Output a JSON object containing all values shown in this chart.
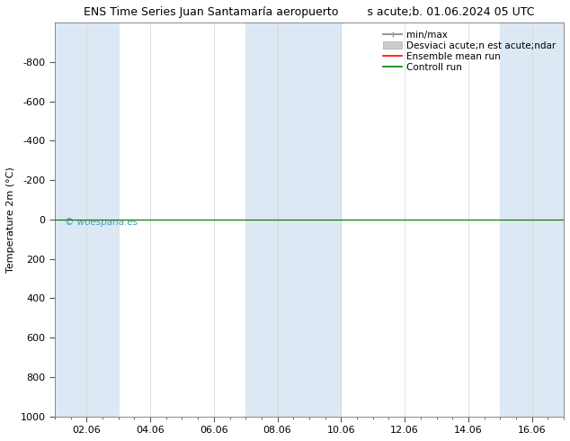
{
  "title_left": "ENS Time Series Juan Santamaría aeropuerto",
  "title_right": "s acute;b. 01.06.2024 05 UTC",
  "ylabel": "Temperature 2m (°C)",
  "ylim_top": -1000,
  "ylim_bottom": 1000,
  "yticks": [
    -800,
    -600,
    -400,
    -200,
    0,
    200,
    400,
    600,
    800,
    1000
  ],
  "xtick_labels": [
    "02.06",
    "04.06",
    "06.06",
    "08.06",
    "10.06",
    "12.06",
    "14.06",
    "16.06"
  ],
  "xtick_positions": [
    2,
    4,
    6,
    8,
    10,
    12,
    14,
    16
  ],
  "xlim": [
    1,
    17
  ],
  "background_color": "#ffffff",
  "plot_bg_color": "#ffffff",
  "shade_bands": [
    [
      1.0,
      2.0
    ],
    [
      2.0,
      3.0
    ],
    [
      7.0,
      8.0
    ],
    [
      8.0,
      9.0
    ],
    [
      9.0,
      10.0
    ],
    [
      15.0,
      16.0
    ],
    [
      16.0,
      17.0
    ]
  ],
  "shade_colors": [
    "#ddeeff",
    "#ffffff",
    "#ddeeff",
    "#ffffff",
    "#ddeeff",
    "#ffffff",
    "#ddeeff"
  ],
  "line_color_ensemble": "#ff0000",
  "line_color_control": "#008000",
  "watermark": "© woespana.es",
  "watermark_color": "#4499cc",
  "legend_labels": [
    "min/max",
    "Desviaci acute;n est acute;ndar",
    "Ensemble mean run",
    "Controll run"
  ],
  "legend_colors_line": [
    "#999999",
    "#bbbbbb",
    "#ff0000",
    "#008000"
  ],
  "font_size_title": 9,
  "font_size_axis": 8,
  "font_size_legend": 7.5
}
